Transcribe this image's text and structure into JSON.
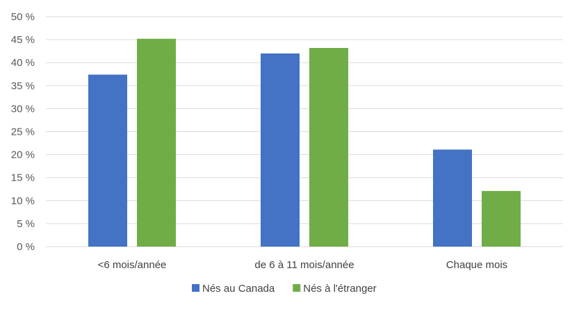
{
  "chart_data": {
    "type": "bar",
    "title": "",
    "xlabel": "",
    "ylabel": "",
    "categories": [
      "<6 mois/année",
      "de 6 à 11 mois/année",
      "Chaque mois"
    ],
    "series": [
      {
        "name": "Nés au Canada",
        "color": "#4472C4",
        "values": [
          37.4,
          42.0,
          21.1
        ]
      },
      {
        "name": "Nés à l'étranger",
        "color": "#70AD47",
        "values": [
          45.2,
          43.2,
          12.1
        ]
      }
    ],
    "ylim": [
      0,
      50
    ],
    "yticks": [
      0,
      5,
      10,
      15,
      20,
      25,
      30,
      35,
      40,
      45,
      50
    ],
    "ytick_labels": [
      "0 %",
      "5 %",
      "10 %",
      "15 %",
      "20 %",
      "25 %",
      "30 %",
      "35 %",
      "40 %",
      "45 %",
      "50 %"
    ],
    "grid": true,
    "legend_position": "bottom"
  }
}
